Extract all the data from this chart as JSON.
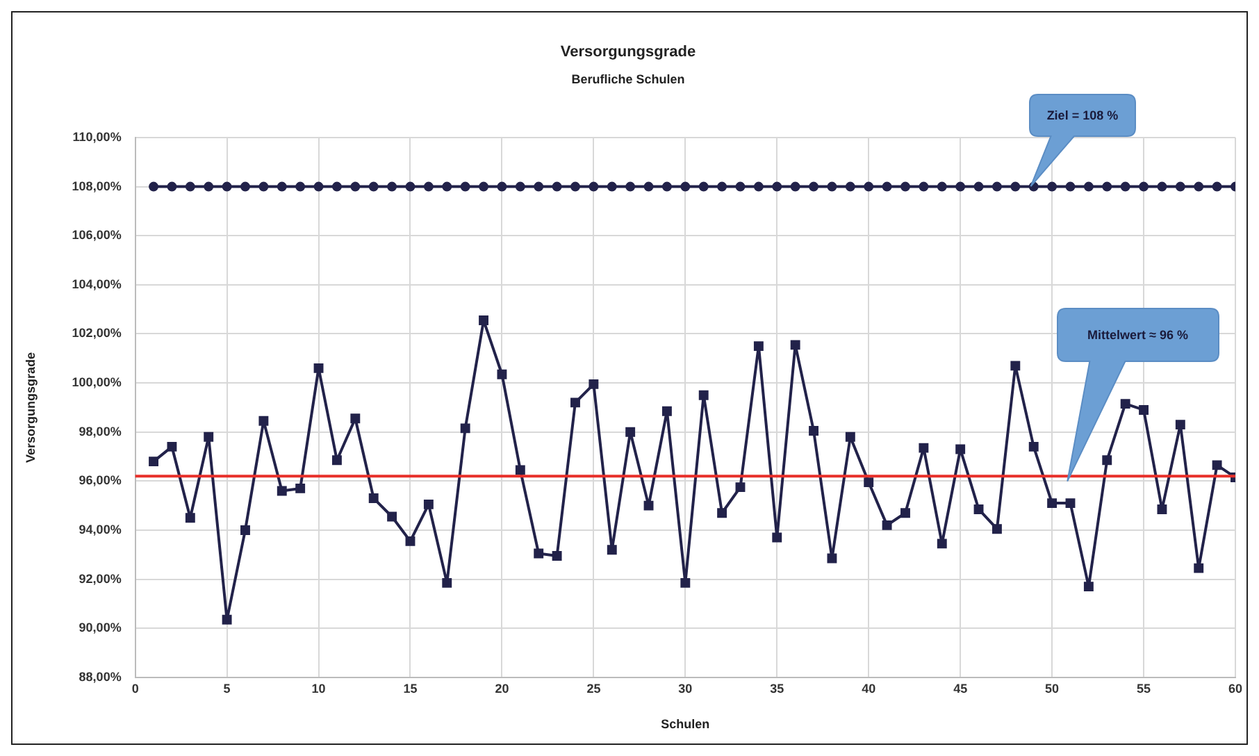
{
  "chart_data": {
    "type": "line",
    "title": "Versorgungsgrade",
    "subtitle": "Berufliche Schulen",
    "xlabel": "Schulen",
    "ylabel": "Versorgungsgrade",
    "x": [
      1,
      2,
      3,
      4,
      5,
      6,
      7,
      8,
      9,
      10,
      11,
      12,
      13,
      14,
      15,
      16,
      17,
      18,
      19,
      20,
      21,
      22,
      23,
      24,
      25,
      26,
      27,
      28,
      29,
      30,
      31,
      32,
      33,
      34,
      35,
      36,
      37,
      38,
      39,
      40,
      41,
      42,
      43,
      44,
      45,
      46,
      47,
      48,
      49,
      50,
      51,
      52,
      53,
      54,
      55,
      56,
      57,
      58,
      59,
      60
    ],
    "series": [
      {
        "color": "#22224a",
        "marker": "square",
        "values": [
          96.8,
          97.4,
          94.5,
          97.8,
          90.35,
          94.0,
          98.45,
          95.6,
          95.7,
          100.6,
          96.85,
          98.55,
          95.3,
          94.55,
          93.55,
          95.05,
          91.85,
          98.15,
          102.55,
          100.35,
          96.45,
          93.05,
          92.95,
          99.2,
          99.95,
          93.2,
          98.0,
          95.0,
          98.85,
          91.85,
          99.5,
          94.7,
          95.75,
          101.5,
          93.7,
          101.55,
          98.05,
          92.85,
          97.8,
          95.95,
          94.2,
          94.7,
          97.35,
          93.45,
          97.3,
          94.85,
          94.05,
          100.7,
          97.4,
          95.1,
          95.1,
          91.7,
          96.85,
          99.15,
          98.9,
          94.85,
          98.3,
          92.45,
          96.65,
          96.15
        ]
      },
      {
        "color": "#22224a",
        "marker": "circle",
        "values": [
          108,
          108,
          108,
          108,
          108,
          108,
          108,
          108,
          108,
          108,
          108,
          108,
          108,
          108,
          108,
          108,
          108,
          108,
          108,
          108,
          108,
          108,
          108,
          108,
          108,
          108,
          108,
          108,
          108,
          108,
          108,
          108,
          108,
          108,
          108,
          108,
          108,
          108,
          108,
          108,
          108,
          108,
          108,
          108,
          108,
          108,
          108,
          108,
          108,
          108,
          108,
          108,
          108,
          108,
          108,
          108,
          108,
          108,
          108,
          108
        ]
      }
    ],
    "ref_lines": [
      {
        "axis": "y",
        "value": 96.2,
        "color": "#e8302a"
      }
    ],
    "annotations": [
      "Ziel = 108 %",
      "Mittelwert ≈ 96 %"
    ],
    "xlim": [
      0,
      60
    ],
    "xticks": [
      0,
      5,
      10,
      15,
      20,
      25,
      30,
      35,
      40,
      45,
      50,
      55,
      60
    ],
    "ylim": [
      88,
      110
    ],
    "yticks": [
      {
        "value": 88,
        "label": "88,00%"
      },
      {
        "value": 90,
        "label": "90,00%"
      },
      {
        "value": 92,
        "label": "92,00%"
      },
      {
        "value": 94,
        "label": "94,00%"
      },
      {
        "value": 96,
        "label": "96,00%"
      },
      {
        "value": 98,
        "label": "98,00%"
      },
      {
        "value": 100,
        "label": "100,00%"
      },
      {
        "value": 102,
        "label": "102,00%"
      },
      {
        "value": 104,
        "label": "104,00%"
      },
      {
        "value": 106,
        "label": "106,00%"
      },
      {
        "value": 108,
        "label": "108,00%"
      },
      {
        "value": 110,
        "label": "110,00%"
      }
    ],
    "grid": true,
    "legend": false,
    "line_style": "solid"
  }
}
